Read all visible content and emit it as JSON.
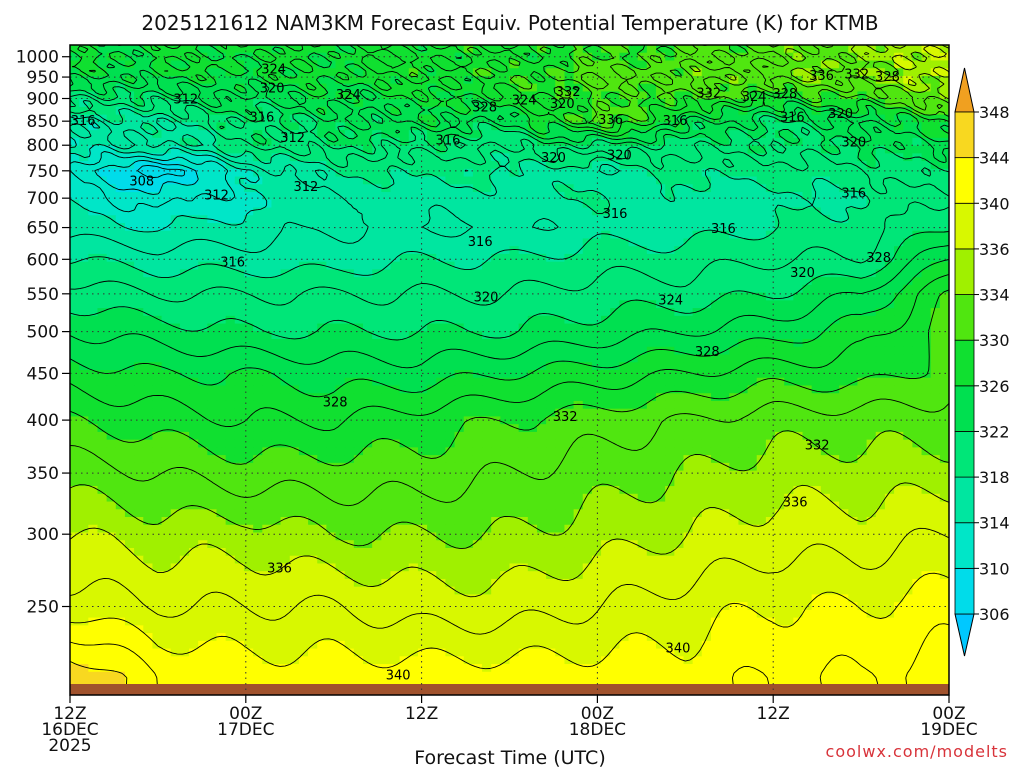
{
  "chart_data": {
    "type": "heatmap",
    "title": "2025121612 NAM3KM Forecast Equiv. Potential Temperature (K) for KTMB",
    "xlabel": "Forecast Time (UTC)",
    "ylabel": "",
    "credit": "coolwx.com/modelts",
    "x_unit": "forecast hour",
    "xlim": [
      0,
      60
    ],
    "x_ticks": [
      {
        "hour": 0,
        "line1": "12Z",
        "line2": "16DEC",
        "line3": "2025"
      },
      {
        "hour": 12,
        "line1": "00Z",
        "line2": "17DEC",
        "line3": ""
      },
      {
        "hour": 24,
        "line1": "12Z",
        "line2": "",
        "line3": ""
      },
      {
        "hour": 36,
        "line1": "00Z",
        "line2": "18DEC",
        "line3": ""
      },
      {
        "hour": 48,
        "line1": "12Z",
        "line2": "",
        "line3": ""
      },
      {
        "hour": 60,
        "line1": "00Z",
        "line2": "19DEC",
        "line3": ""
      }
    ],
    "y_unit": "hPa",
    "ylim": [
      1030,
      200
    ],
    "y_scale": "log",
    "y_ticks": [
      250,
      300,
      350,
      400,
      450,
      500,
      550,
      600,
      650,
      700,
      750,
      800,
      850,
      900,
      950,
      1000
    ],
    "grid": true,
    "colorbar": {
      "levels": [
        306,
        310,
        314,
        318,
        322,
        326,
        330,
        334,
        336,
        340,
        344,
        348
      ],
      "colors": [
        "#00c8ff",
        "#00dcea",
        "#00e6c8",
        "#00e6a0",
        "#00e678",
        "#00e050",
        "#10e030",
        "#50e610",
        "#a0f000",
        "#d8f800",
        "#ffff00",
        "#f8d820",
        "#f0a020"
      ]
    },
    "theta_e_profile": {
      "x_hours": [
        0,
        6,
        12,
        18,
        24,
        30,
        36,
        42,
        48,
        54,
        60
      ],
      "pressure_levels": [
        1000,
        950,
        900,
        850,
        800,
        750,
        700,
        650,
        600,
        550,
        500,
        450,
        400,
        350,
        300,
        250,
        210
      ],
      "values": [
        [
          326,
          326,
          327,
          327,
          328,
          328,
          330,
          331,
          332,
          334,
          336
        ],
        [
          325,
          326,
          326,
          327,
          328,
          329,
          332,
          332,
          333,
          334,
          335
        ],
        [
          320,
          322,
          324,
          325,
          326,
          327,
          330,
          330,
          328,
          330,
          333
        ],
        [
          316,
          317,
          321,
          323,
          325,
          324,
          332,
          325,
          322,
          324,
          328
        ],
        [
          315,
          316,
          320,
          322,
          321,
          320,
          322,
          321,
          321,
          322,
          325
        ],
        [
          312,
          306,
          314,
          318,
          319,
          318,
          316,
          319,
          319,
          320,
          322
        ],
        [
          313,
          311,
          313,
          316,
          317,
          317,
          318,
          317,
          317,
          318,
          320
        ],
        [
          315,
          314,
          315,
          316,
          316,
          316,
          317,
          317,
          318,
          319,
          322
        ],
        [
          318,
          317,
          317,
          317,
          318,
          318,
          319,
          319,
          320,
          320,
          326
        ],
        [
          321,
          320,
          320,
          320,
          320,
          320,
          321,
          321,
          322,
          324,
          330
        ],
        [
          324,
          323,
          322,
          322,
          322,
          322,
          323,
          324,
          325,
          327,
          331
        ],
        [
          327,
          326,
          326,
          325,
          325,
          326,
          327,
          328,
          329,
          329,
          331
        ],
        [
          330,
          329,
          328,
          328,
          329,
          330,
          331,
          332,
          333,
          333,
          333
        ],
        [
          333,
          332,
          331,
          331,
          331,
          332,
          333,
          334,
          335,
          335,
          335
        ],
        [
          336,
          335,
          335,
          334,
          334,
          334,
          335,
          336,
          337,
          337,
          338
        ],
        [
          339,
          338,
          338,
          338,
          337,
          337,
          338,
          339,
          340,
          340,
          341
        ],
        [
          346,
          342,
          341,
          341,
          341,
          341,
          341,
          341,
          342,
          342,
          343
        ]
      ]
    },
    "contour_labels": [
      {
        "text": "340",
        "hour": 22.4,
        "p": 210
      },
      {
        "text": "340",
        "hour": 41.5,
        "p": 225
      },
      {
        "text": "336",
        "hour": 14.3,
        "p": 275
      },
      {
        "text": "336",
        "hour": 49.5,
        "p": 325
      },
      {
        "text": "332",
        "hour": 51.0,
        "p": 375
      },
      {
        "text": "332",
        "hour": 33.8,
        "p": 403
      },
      {
        "text": "328",
        "hour": 18.1,
        "p": 418
      },
      {
        "text": "328",
        "hour": 43.5,
        "p": 475
      },
      {
        "text": "324",
        "hour": 41.0,
        "p": 541
      },
      {
        "text": "320",
        "hour": 28.4,
        "p": 545
      },
      {
        "text": "320",
        "hour": 50.0,
        "p": 580
      },
      {
        "text": "328",
        "hour": 55.2,
        "p": 602
      },
      {
        "text": "316",
        "hour": 11.1,
        "p": 595
      },
      {
        "text": "316",
        "hour": 28.0,
        "p": 627
      },
      {
        "text": "316",
        "hour": 44.6,
        "p": 648
      },
      {
        "text": "316",
        "hour": 37.2,
        "p": 673
      },
      {
        "text": "316",
        "hour": 53.5,
        "p": 708
      },
      {
        "text": "312",
        "hour": 10.0,
        "p": 705
      },
      {
        "text": "312",
        "hour": 16.1,
        "p": 720
      },
      {
        "text": "308",
        "hour": 4.9,
        "p": 730
      },
      {
        "text": "320",
        "hour": 33.0,
        "p": 775
      },
      {
        "text": "320",
        "hour": 37.5,
        "p": 780
      },
      {
        "text": "320",
        "hour": 53.5,
        "p": 805
      },
      {
        "text": "316",
        "hour": 25.8,
        "p": 810
      },
      {
        "text": "312",
        "hour": 15.2,
        "p": 815
      },
      {
        "text": "316",
        "hour": 0.9,
        "p": 850
      },
      {
        "text": "316",
        "hour": 13.1,
        "p": 858
      },
      {
        "text": "336",
        "hour": 36.9,
        "p": 852
      },
      {
        "text": "316",
        "hour": 41.3,
        "p": 850
      },
      {
        "text": "316",
        "hour": 49.3,
        "p": 858
      },
      {
        "text": "320",
        "hour": 52.6,
        "p": 865
      },
      {
        "text": "328",
        "hour": 28.3,
        "p": 880
      },
      {
        "text": "324",
        "hour": 31.0,
        "p": 895
      },
      {
        "text": "320",
        "hour": 33.6,
        "p": 888
      },
      {
        "text": "312",
        "hour": 7.9,
        "p": 898
      },
      {
        "text": "324",
        "hour": 19.0,
        "p": 908
      },
      {
        "text": "332",
        "hour": 34.0,
        "p": 915
      },
      {
        "text": "332",
        "hour": 43.6,
        "p": 912
      },
      {
        "text": "324",
        "hour": 46.7,
        "p": 903
      },
      {
        "text": "328",
        "hour": 48.8,
        "p": 910
      },
      {
        "text": "320",
        "hour": 13.8,
        "p": 923
      },
      {
        "text": "336",
        "hour": 51.3,
        "p": 952
      },
      {
        "text": "332",
        "hour": 53.7,
        "p": 956
      },
      {
        "text": "328",
        "hour": 55.8,
        "p": 950
      },
      {
        "text": "324",
        "hour": 13.9,
        "p": 968
      }
    ]
  }
}
